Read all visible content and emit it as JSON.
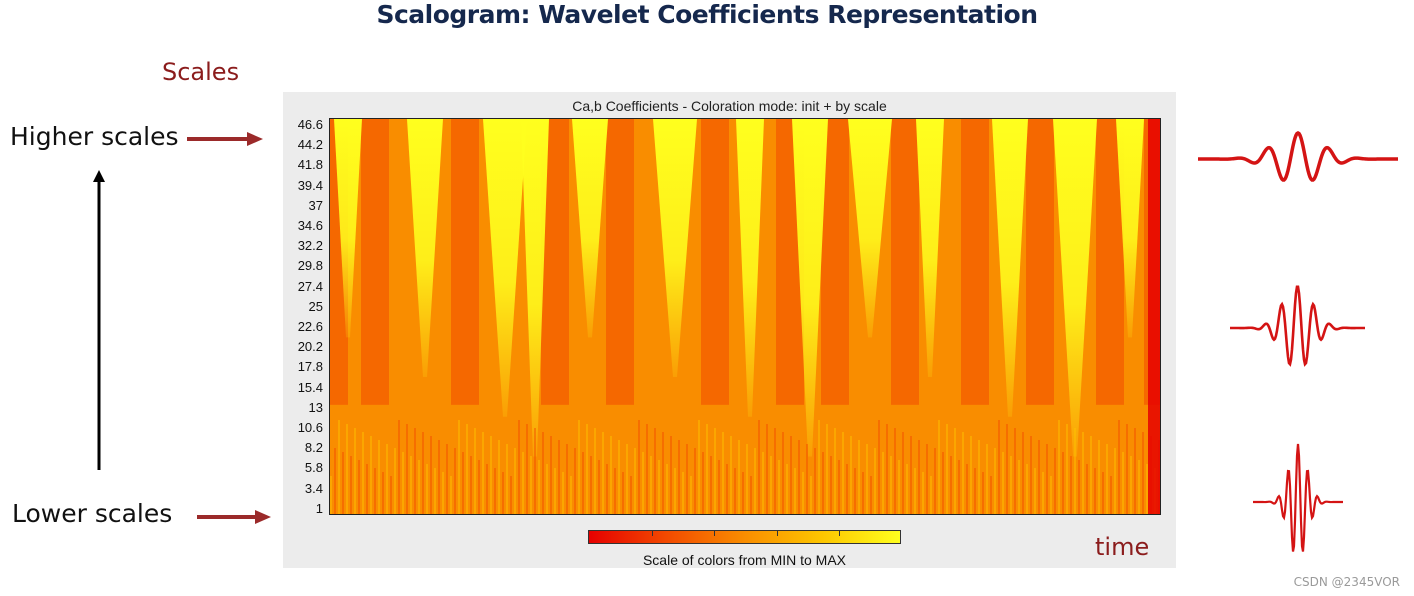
{
  "slide": {
    "title": "Scalogram: Wavelet Coefficients Representation",
    "scales_label": "Scales",
    "higher_label": "Higher scales",
    "lower_label": "Lower scales",
    "time_label": "time",
    "watermark": "CSDN @2345VOR"
  },
  "colors": {
    "title": "#15284d",
    "accent_red": "#8b1c1c",
    "min_color": "#e60000",
    "max_color": "#ffff1e"
  },
  "chart_data": {
    "type": "heatmap",
    "title": "Ca,b Coefficients - Coloration mode: init + by scale",
    "ylabel": "Scales",
    "xlabel": "time",
    "y_ticks": [
      "46.6",
      "44.2",
      "41.8",
      "39.4",
      "37",
      "34.6",
      "32.2",
      "29.8",
      "27.4",
      "25",
      "22.6",
      "20.2",
      "17.8",
      "15.4",
      "13",
      "10.6",
      "8.2",
      "5.8",
      "3.4",
      "1"
    ],
    "y_range": [
      1,
      46.6
    ],
    "colormap": [
      "#e60000",
      "#f24a00",
      "#f98d00",
      "#fdc600",
      "#ffff1e"
    ],
    "colorbar_label": "Scale of colors from MIN to MAX",
    "colorbar_range": [
      "MIN",
      "MAX"
    ]
  }
}
